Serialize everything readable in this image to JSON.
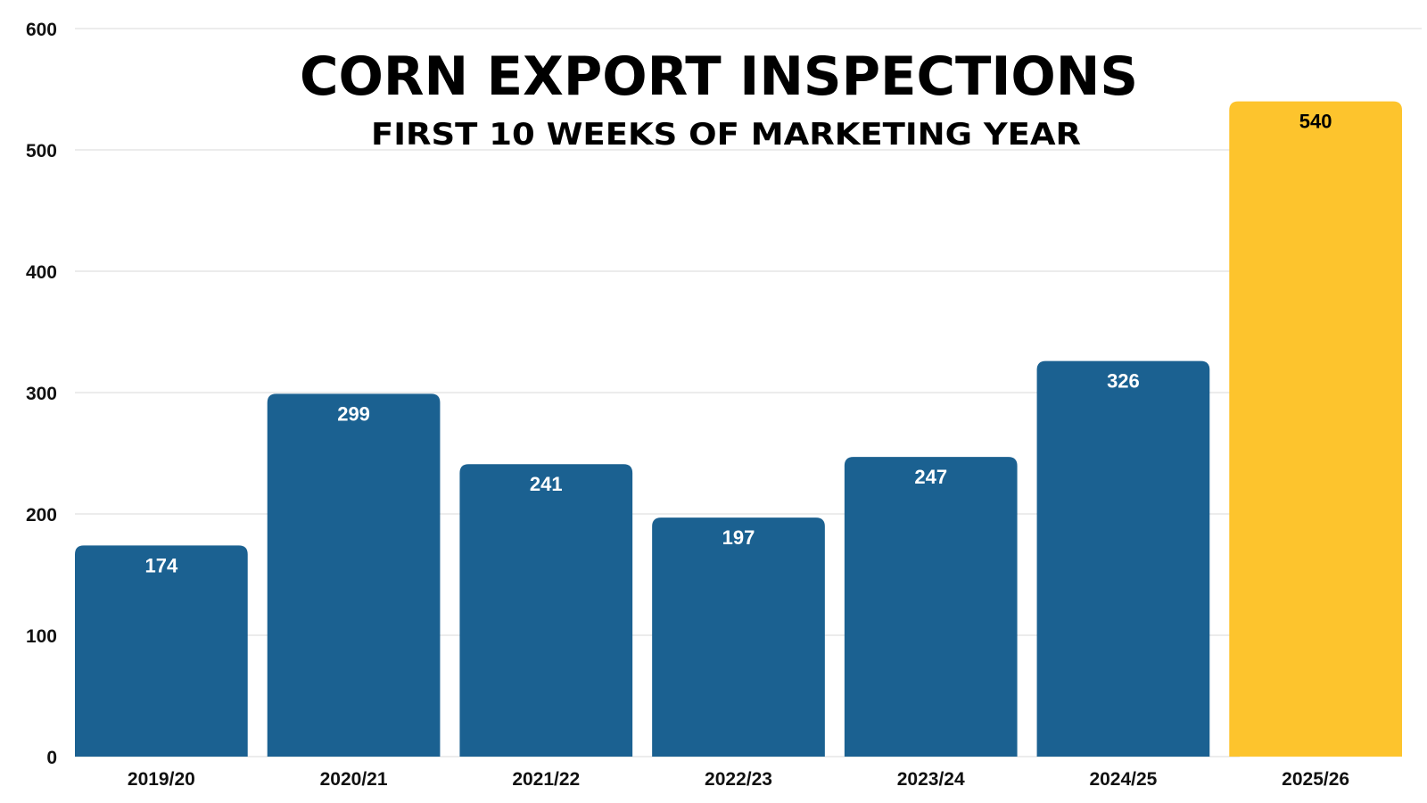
{
  "chart_data": {
    "type": "bar",
    "title": "CORN EXPORT INSPECTIONS",
    "subtitle": "FIRST 10 WEEKS OF MARKETING YEAR",
    "xlabel": "",
    "ylabel": "",
    "categories": [
      "2019/20",
      "2020/21",
      "2021/22",
      "2022/23",
      "2023/24",
      "2024/25",
      "2025/26"
    ],
    "values": [
      174,
      299,
      241,
      197,
      247,
      326,
      540
    ],
    "data_labels": [
      "174",
      "299",
      "241",
      "197",
      "247",
      "326",
      "540"
    ],
    "ylim": [
      0,
      600
    ],
    "yticks": [
      0,
      100,
      200,
      300,
      400,
      500,
      600
    ],
    "ytick_labels": [
      "0",
      "100",
      "200",
      "300",
      "400",
      "500",
      "600"
    ],
    "grid": true,
    "legend": "none",
    "colors": {
      "bar": "#1b6191",
      "highlight_bar": "#fdc42d",
      "label_on_bar": "#ffffff",
      "label_on_highlight": "#000000",
      "grid": "#d9d9d9"
    },
    "highlight_index": 6
  }
}
